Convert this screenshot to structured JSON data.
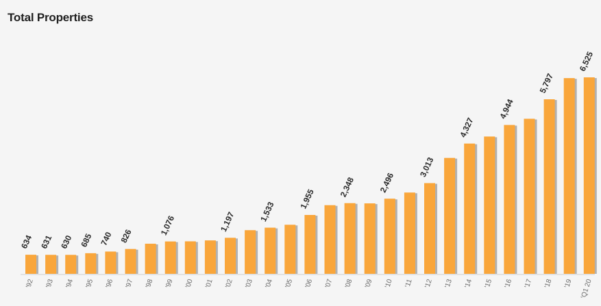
{
  "chart_data": {
    "type": "bar",
    "title": "Total Properties",
    "xlabel": "",
    "ylabel": "",
    "categories": [
      "'92",
      "'93",
      "'94",
      "'95",
      "'96",
      "'97",
      "'98",
      "'99",
      "'00",
      "'01",
      "'02",
      "'03",
      "'04",
      "'05",
      "'06",
      "'07",
      "'08",
      "'09",
      "'10",
      "'11",
      "'12",
      "'13",
      "'14",
      "'15",
      "'16",
      "'17",
      "'18",
      "'19",
      "'Q1 20"
    ],
    "values": [
      634,
      631,
      630,
      685,
      740,
      826,
      1000,
      1076,
      1080,
      1110,
      1197,
      1450,
      1533,
      1630,
      1955,
      2280,
      2348,
      2340,
      2496,
      2700,
      3013,
      3850,
      4327,
      4560,
      4944,
      5150,
      5797,
      6500,
      6525
    ],
    "data_labels": [
      "634",
      "631",
      "630",
      "685",
      "740",
      "826",
      "",
      "1,076",
      "",
      "",
      "1,197",
      "",
      "1,533",
      "",
      "1,955",
      "",
      "2,348",
      "",
      "2,496",
      "",
      "3,013",
      "",
      "4,327",
      "",
      "4,944",
      "",
      "5,797",
      "",
      "6,525"
    ],
    "ylim": [
      0,
      6525
    ],
    "grid": false,
    "legend": "none",
    "colors": {
      "bar": "#f9a63b",
      "bar_shadow": "#9a9a9a",
      "axis": "#cfcfcf"
    }
  }
}
